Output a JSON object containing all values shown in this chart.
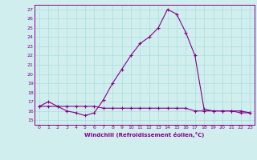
{
  "xlabel": "Windchill (Refroidissement éolien,°C)",
  "background_color": "#d0eeee",
  "line_color": "#880088",
  "grid_color": "#aadddd",
  "xlim": [
    -0.5,
    23.5
  ],
  "ylim": [
    14.5,
    27.5
  ],
  "xticks": [
    0,
    1,
    2,
    3,
    4,
    5,
    6,
    7,
    8,
    9,
    10,
    11,
    12,
    13,
    14,
    15,
    16,
    17,
    18,
    19,
    20,
    21,
    22,
    23
  ],
  "yticks": [
    15,
    16,
    17,
    18,
    19,
    20,
    21,
    22,
    23,
    24,
    25,
    26,
    27
  ],
  "hours": [
    0,
    1,
    2,
    3,
    4,
    5,
    6,
    7,
    8,
    9,
    10,
    11,
    12,
    13,
    14,
    15,
    16,
    17,
    18,
    19,
    20,
    21,
    22,
    23
  ],
  "temp1": [
    16.5,
    17.0,
    16.5,
    16.0,
    15.8,
    15.5,
    15.8,
    17.2,
    19.0,
    20.5,
    22.0,
    23.3,
    24.0,
    25.0,
    27.0,
    26.5,
    24.5,
    22.0,
    16.2,
    16.0,
    16.0,
    16.0,
    16.0,
    15.8
  ],
  "temp2": [
    16.5,
    16.5,
    16.5,
    16.5,
    16.5,
    16.5,
    16.5,
    16.3,
    16.3,
    16.3,
    16.3,
    16.3,
    16.3,
    16.3,
    16.3,
    16.3,
    16.3,
    16.0,
    16.0,
    16.0,
    16.0,
    16.0,
    15.8,
    15.8
  ]
}
